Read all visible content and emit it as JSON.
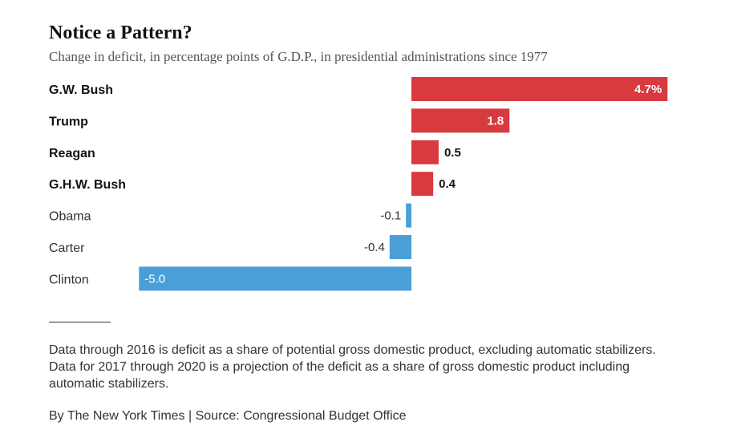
{
  "title": "Notice a Pattern?",
  "subtitle": "Change in deficit, in percentage points of G.D.P., in presidential administrations since 1977",
  "chart_data": {
    "type": "bar",
    "orientation": "horizontal",
    "categories": [
      "G.W. Bush",
      "Trump",
      "Reagan",
      "G.H.W. Bush",
      "Obama",
      "Carter",
      "Clinton"
    ],
    "values": [
      4.7,
      1.8,
      0.5,
      0.4,
      -0.1,
      -0.4,
      -5.0
    ],
    "value_labels": [
      "4.7%",
      "1.8",
      "0.5",
      "0.4",
      "-0.1",
      "-0.4",
      "-5.0"
    ],
    "xlim": [
      -5.0,
      4.7
    ],
    "colors": {
      "positive": "#d73a3f",
      "negative": "#4a9fd6"
    },
    "grid": false
  },
  "footnote": "Data through 2016 is deficit as a share of potential gross domestic product, excluding automatic stabilizers. Data for 2017 through 2020 is a projection of the deficit as a share of gross domestic product including automatic stabilizers.",
  "source": "By The New York Times | Source: Congressional Budget Office"
}
